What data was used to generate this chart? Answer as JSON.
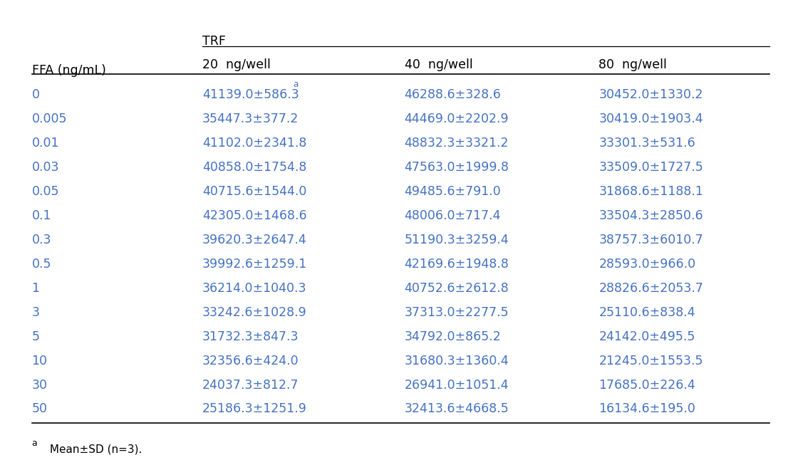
{
  "col_header_top": "TRF",
  "col_header_row": [
    "20  ng/well",
    "40  ng/well",
    "80  ng/well"
  ],
  "row_header_label": "FFA (ng/mL)",
  "ffa_values": [
    "0",
    "0.005",
    "0.01",
    "0.03",
    "0.05",
    "0.1",
    "0.3",
    "0.5",
    "1",
    "3",
    "5",
    "10",
    "30",
    "50"
  ],
  "data": [
    [
      "41139.0±586.3",
      "46288.6±328.6",
      "30452.0±1330.2"
    ],
    [
      "35447.3±377.2",
      "44469.0±2202.9",
      "30419.0±1903.4"
    ],
    [
      "41102.0±2341.8",
      "48832.3±3321.2",
      "33301.3±531.6"
    ],
    [
      "40858.0±1754.8",
      "47563.0±1999.8",
      "33509.0±1727.5"
    ],
    [
      "40715.6±1544.0",
      "49485.6±791.0",
      "31868.6±1188.1"
    ],
    [
      "42305.0±1468.6",
      "48006.0±717.4",
      "33504.3±2850.6"
    ],
    [
      "39620.3±2647.4",
      "51190.3±3259.4",
      "38757.3±6010.7"
    ],
    [
      "39992.6±1259.1",
      "42169.6±1948.8",
      "28593.0±966.0"
    ],
    [
      "36214.0±1040.3",
      "40752.6±2612.8",
      "28826.6±2053.7"
    ],
    [
      "33242.6±1028.9",
      "37313.0±2277.5",
      "25110.6±838.4"
    ],
    [
      "31732.3±847.3",
      "34792.0±865.2",
      "24142.0±495.5"
    ],
    [
      "32356.6±424.0",
      "31680.3±1360.4",
      "21245.0±1553.5"
    ],
    [
      "24037.3±812.7",
      "26941.0±1051.4",
      "17685.0±226.4"
    ],
    [
      "25186.3±1251.9",
      "32413.6±4668.5",
      "16134.6±195.0"
    ]
  ],
  "footnote_superscript": "a",
  "footnote_text": " Mean±SD (n=3).",
  "first_row_superscript": "a",
  "text_color": "#4472c4",
  "header_color": "#000000",
  "bg_color": "#ffffff",
  "font_size": 12.5,
  "header_font_size": 12.5,
  "footnote_font_size": 11.0
}
